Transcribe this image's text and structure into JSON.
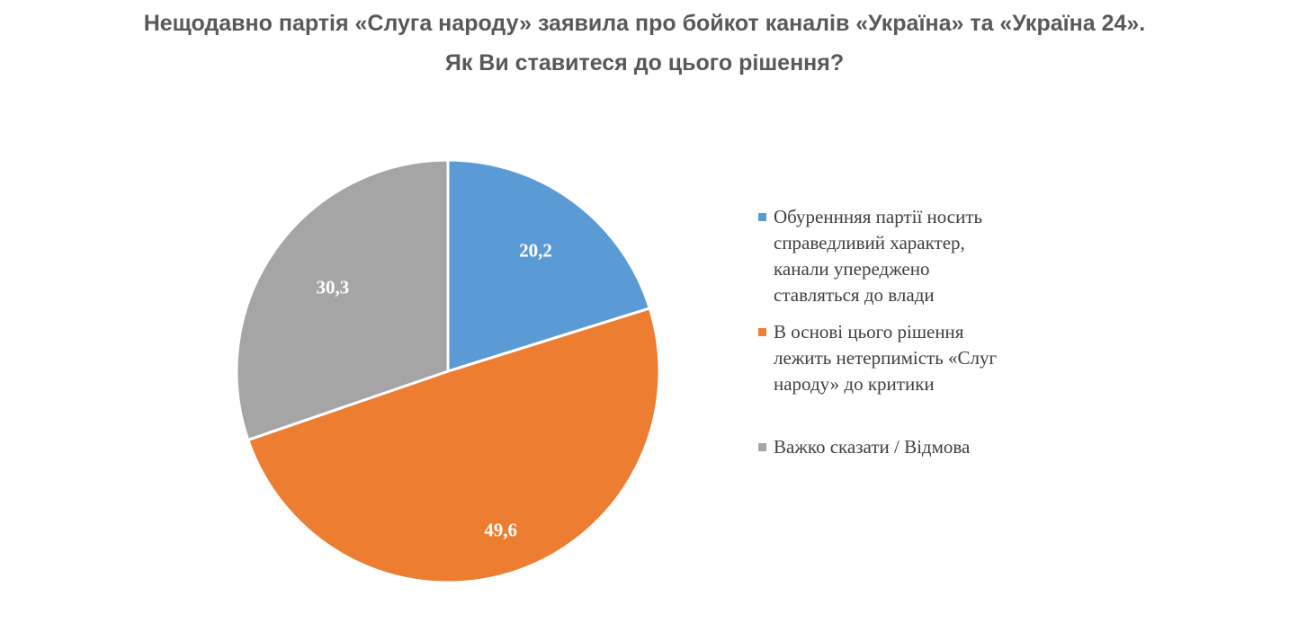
{
  "title_lines": [
    "Нещодавно партія «Слуга народу» заявила про бойкот каналів «Україна» та «Україна 24».",
    "Як Ви ставитеся до цього рішення?"
  ],
  "chart_data": {
    "type": "pie",
    "title": "Нещодавно партія «Слуга народу» заявила про бойкот каналів «Україна» та «Україна 24». Як Ви ставитеся до цього рішення?",
    "slices": [
      {
        "name": "Обуреннняя  партії носить справедливий характер, канали упереджено ставляться до влади",
        "value": 20.2,
        "label": "20,2",
        "color": "#5b9bd5"
      },
      {
        "name": "В основі цього рішення лежить нетерпимість «Слуг народу» до критики",
        "value": 49.6,
        "label": "49,6",
        "color": "#ed7d31"
      },
      {
        "name": "Важко сказати / Відмова",
        "value": 30.3,
        "label": "30,3",
        "color": "#a5a5a5"
      }
    ],
    "legend_position": "right"
  },
  "legend": [
    {
      "text": "Обуреннняя  партії носить\nсправедливий характер,\nканали упереджено\nставляться до влади",
      "color": "#5b9bd5"
    },
    {
      "text": "В основі цього рішення\nлежить нетерпимість «Слуг\nнароду» до критики",
      "color": "#ed7d31"
    },
    {
      "text": "Важко сказати / Відмова",
      "color": "#a5a5a5"
    }
  ]
}
